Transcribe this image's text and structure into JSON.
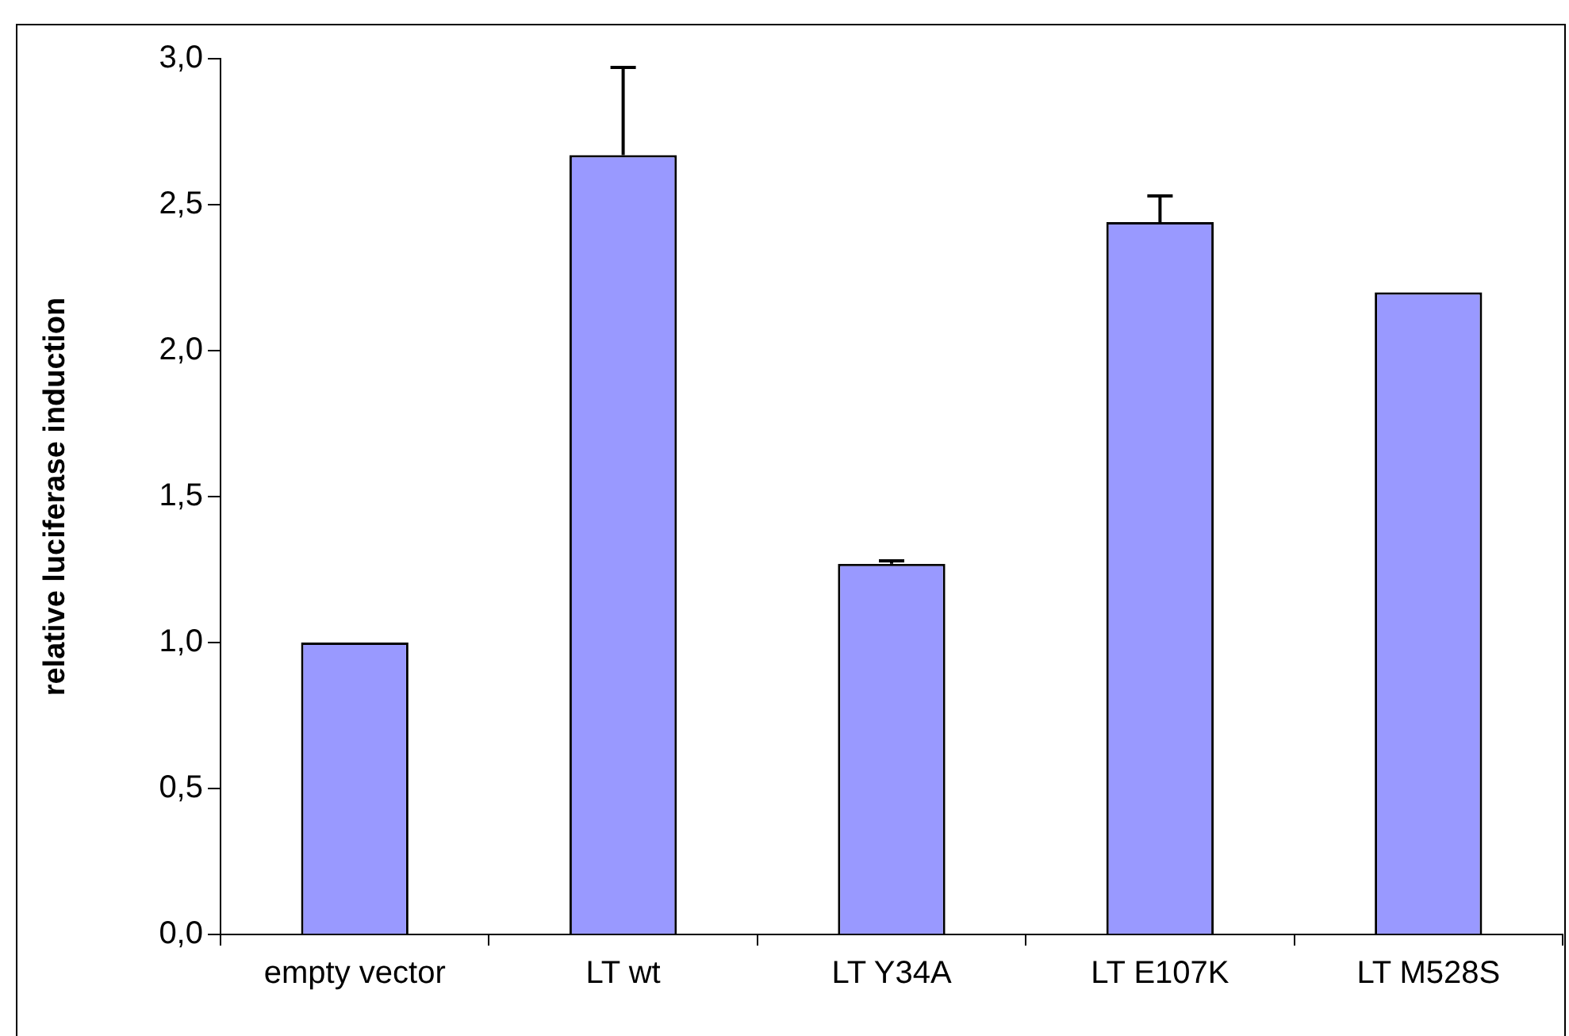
{
  "chart_data": {
    "type": "bar",
    "categories": [
      "empty vector",
      "LT wt",
      "LT Y34A",
      "LT E107K",
      "LT M528S"
    ],
    "values": [
      1.0,
      2.67,
      1.27,
      2.44,
      2.2
    ],
    "color": "#9999ff",
    "errors": [
      null,
      [
        2.67,
        2.97
      ],
      [
        1.27,
        1.28
      ],
      [
        2.44,
        2.53
      ],
      null
    ],
    "ylabel": "relative luciferase induction",
    "ylim": [
      0,
      3
    ],
    "yticks": [
      {
        "value": 0,
        "label": "0,0"
      },
      {
        "value": 0.5,
        "label": "0,5"
      },
      {
        "value": 1,
        "label": "1,0"
      },
      {
        "value": 1.5,
        "label": "1,5"
      },
      {
        "value": 2,
        "label": "2,0"
      },
      {
        "value": 2.5,
        "label": "2,5"
      },
      {
        "value": 3,
        "label": "3,0"
      }
    ]
  }
}
